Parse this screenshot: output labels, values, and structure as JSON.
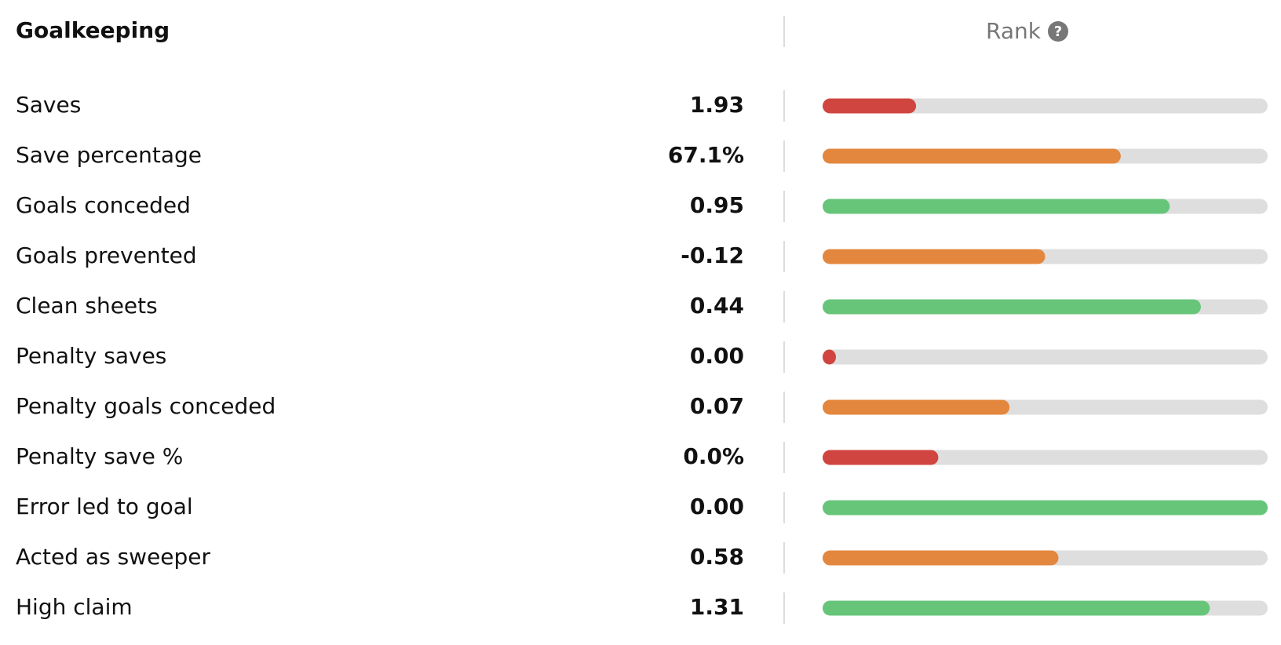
{
  "header": {
    "title": "Goalkeeping",
    "rank_label": "Rank",
    "help_icon": "?"
  },
  "rank_lim": [
    0,
    100
  ],
  "rows": [
    {
      "label": "Saves",
      "value": "1.93",
      "rank": 21,
      "color": "#d0453f"
    },
    {
      "label": "Save percentage",
      "value": "67.1%",
      "rank": 67,
      "color": "#e3873e"
    },
    {
      "label": "Goals conceded",
      "value": "0.95",
      "rank": 78,
      "color": "#67c57a"
    },
    {
      "label": "Goals prevented",
      "value": "-0.12",
      "rank": 50,
      "color": "#e3873e"
    },
    {
      "label": "Clean sheets",
      "value": "0.44",
      "rank": 85,
      "color": "#67c57a"
    },
    {
      "label": "Penalty saves",
      "value": "0.00",
      "rank": 3,
      "color": "#d0453f"
    },
    {
      "label": "Penalty goals conceded",
      "value": "0.07",
      "rank": 42,
      "color": "#e3873e"
    },
    {
      "label": "Penalty save %",
      "value": "0.0%",
      "rank": 26,
      "color": "#d0453f"
    },
    {
      "label": "Error led to goal",
      "value": "0.00",
      "rank": 100,
      "color": "#67c57a"
    },
    {
      "label": "Acted as sweeper",
      "value": "0.58",
      "rank": 53,
      "color": "#e3873e"
    },
    {
      "label": "High claim",
      "value": "1.31",
      "rank": 87,
      "color": "#67c57a"
    }
  ]
}
